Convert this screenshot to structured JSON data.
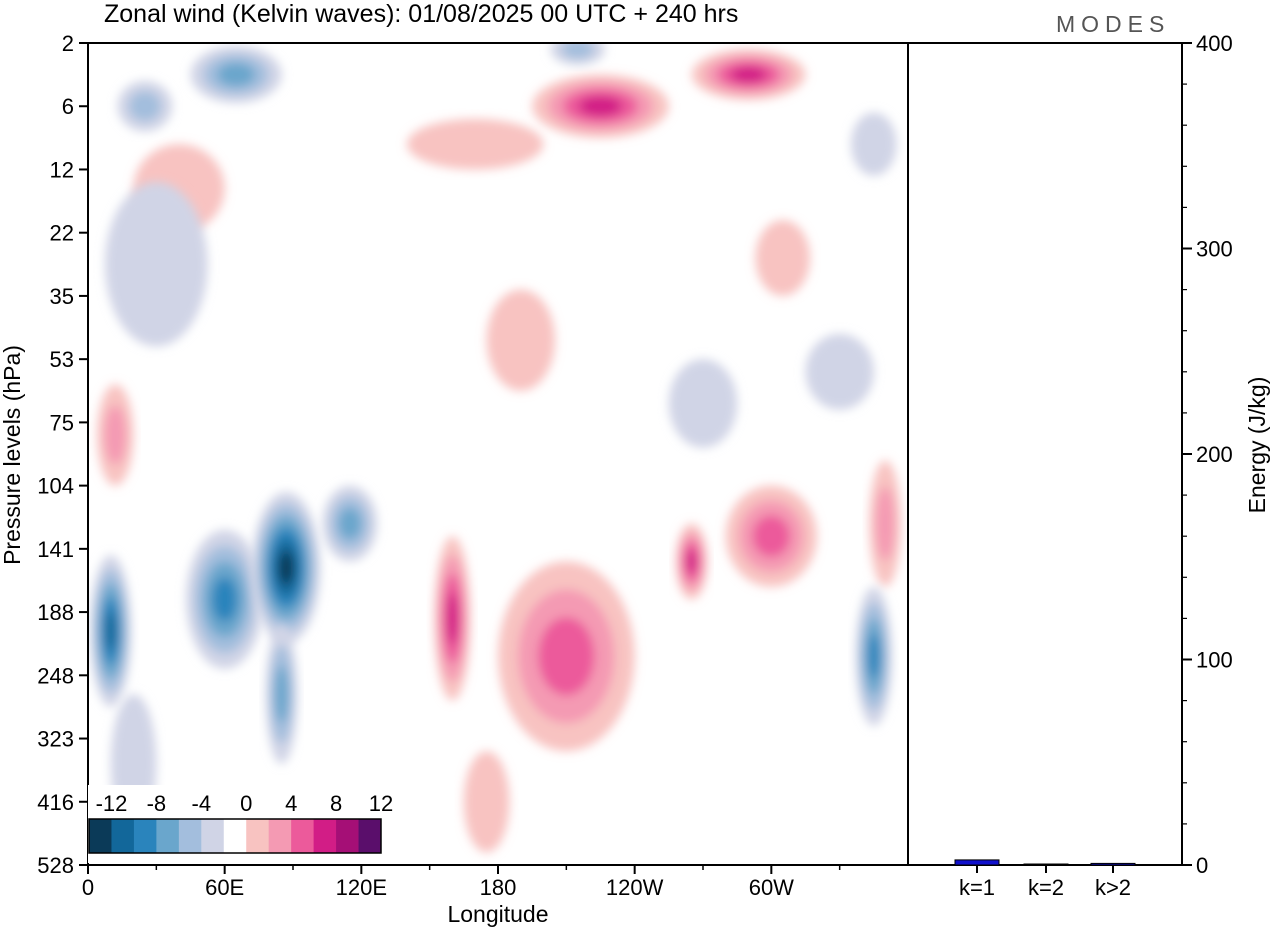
{
  "chart_data": [
    {
      "type": "heatmap",
      "title": "Zonal wind (Kelvin waves):  01/08/2025  00 UTC  + 240 hrs",
      "xlabel": "Longitude",
      "ylabel": "Pressure levels (hPa)",
      "x_range_deg": [
        0,
        360
      ],
      "x_ticks": [
        {
          "label": "0",
          "lon": 0
        },
        {
          "label": "60E",
          "lon": 60
        },
        {
          "label": "120E",
          "lon": 120
        },
        {
          "label": "180",
          "lon": 180
        },
        {
          "label": "120W",
          "lon": 240
        },
        {
          "label": "60W",
          "lon": 300
        }
      ],
      "y_levels_hpa": [
        "2",
        "6",
        "12",
        "22",
        "35",
        "53",
        "75",
        "104",
        "141",
        "188",
        "248",
        "323",
        "416",
        "528"
      ],
      "colorbar": {
        "labels": [
          "-12",
          "-8",
          "-4",
          "0",
          "4",
          "8",
          "12"
        ],
        "levels": [
          -14,
          -12,
          -10,
          -8,
          -6,
          -4,
          -2,
          2,
          4,
          6,
          8,
          10,
          12,
          14
        ],
        "colors": [
          "#0b3a58",
          "#12679a",
          "#2a84bc",
          "#6aa6cc",
          "#a3bedd",
          "#d0d4e6",
          "#ffffff",
          "#f8c3c1",
          "#f49ab3",
          "#ec5a9b",
          "#d21d86",
          "#a50f76",
          "#5a0e6b"
        ]
      },
      "features": [
        {
          "lon": 10,
          "level_index": 9.3,
          "value": -10,
          "lon_width": 18,
          "level_span": 2.4
        },
        {
          "lon": 60,
          "level_index": 8.8,
          "value": -9,
          "lon_width": 34,
          "level_span": 2.2
        },
        {
          "lon": 87,
          "level_index": 8.3,
          "value": -13,
          "lon_width": 30,
          "level_span": 2.4
        },
        {
          "lon": 115,
          "level_index": 7.6,
          "value": -7,
          "lon_width": 24,
          "level_span": 1.2
        },
        {
          "lon": 85,
          "level_index": 10.3,
          "value": -6,
          "lon_width": 14,
          "level_span": 2.2
        },
        {
          "lon": 20,
          "level_index": 11.4,
          "value": -3,
          "lon_width": 20,
          "level_span": 2.2
        },
        {
          "lon": 160,
          "level_index": 9.1,
          "value": 9,
          "lon_width": 16,
          "level_span": 2.6
        },
        {
          "lon": 210,
          "level_index": 9.7,
          "value": 6,
          "lon_width": 60,
          "level_span": 3.0
        },
        {
          "lon": 265,
          "level_index": 8.2,
          "value": 9,
          "lon_width": 14,
          "level_span": 1.2
        },
        {
          "lon": 300,
          "level_index": 7.8,
          "value": 6,
          "lon_width": 40,
          "level_span": 1.6
        },
        {
          "lon": 350,
          "level_index": 7.6,
          "value": 5,
          "lon_width": 14,
          "level_span": 2.0
        },
        {
          "lon": 345,
          "level_index": 9.7,
          "value": -9,
          "lon_width": 16,
          "level_span": 2.2
        },
        {
          "lon": 12,
          "level_index": 6.2,
          "value": 5,
          "lon_width": 16,
          "level_span": 1.6
        },
        {
          "lon": 225,
          "level_index": 1.0,
          "value": 8,
          "lon_width": 60,
          "level_span": 1.0
        },
        {
          "lon": 290,
          "level_index": 0.5,
          "value": 9,
          "lon_width": 50,
          "level_span": 0.8
        },
        {
          "lon": 65,
          "level_index": 0.5,
          "value": -6,
          "lon_width": 40,
          "level_span": 0.9
        },
        {
          "lon": 25,
          "level_index": 1.0,
          "value": -5,
          "lon_width": 24,
          "level_span": 0.8
        },
        {
          "lon": 215,
          "level_index": 0.1,
          "value": -4,
          "lon_width": 24,
          "level_span": 0.5
        },
        {
          "lon": 40,
          "level_index": 2.3,
          "value": 3,
          "lon_width": 40,
          "level_span": 1.4
        },
        {
          "lon": 305,
          "level_index": 3.4,
          "value": 3,
          "lon_width": 24,
          "level_span": 1.2
        },
        {
          "lon": 190,
          "level_index": 4.7,
          "value": 3,
          "lon_width": 30,
          "level_span": 1.6
        },
        {
          "lon": 170,
          "level_index": 1.6,
          "value": 3,
          "lon_width": 60,
          "level_span": 0.8
        },
        {
          "lon": 30,
          "level_index": 3.5,
          "value": -3,
          "lon_width": 45,
          "level_span": 2.6
        },
        {
          "lon": 270,
          "level_index": 5.7,
          "value": -3,
          "lon_width": 30,
          "level_span": 1.4
        },
        {
          "lon": 330,
          "level_index": 5.2,
          "value": -3,
          "lon_width": 30,
          "level_span": 1.2
        },
        {
          "lon": 345,
          "level_index": 1.6,
          "value": -3,
          "lon_width": 20,
          "level_span": 1.0
        },
        {
          "lon": 175,
          "level_index": 12.0,
          "value": 3,
          "lon_width": 20,
          "level_span": 1.6
        }
      ]
    },
    {
      "type": "bar",
      "ylabel": "Energy (J/kg)",
      "ylim": [
        0,
        400
      ],
      "y_ticks": [
        "0",
        "100",
        "200",
        "300",
        "400"
      ],
      "categories": [
        "k=1",
        "k=2",
        "k>2"
      ],
      "values": [
        2.5,
        0.3,
        0.8
      ],
      "bar_color": "#1010cc"
    }
  ],
  "logo": "MODES"
}
